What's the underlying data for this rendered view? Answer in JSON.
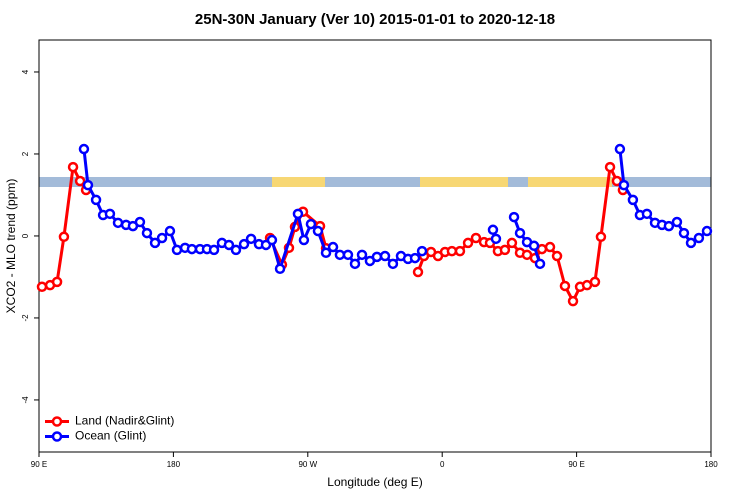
{
  "chart_data": {
    "type": "line",
    "title": "25N-30N January (Ver 10)   2015-01-01 to 2020-12-18",
    "x_label": "Longitude (deg E)",
    "y_label": "XCO2 - MLO trend (ppm)",
    "xlim": [
      90,
      540
    ],
    "ylim": [
      -5.27,
      4.78
    ],
    "xticks": [
      {
        "value": 90,
        "label": "90 E"
      },
      {
        "value": 180,
        "label": "180"
      },
      {
        "value": 270,
        "label": "90 W"
      },
      {
        "value": 360,
        "label": "0"
      },
      {
        "value": 450,
        "label": "90 E"
      },
      {
        "value": 540,
        "label": "180"
      }
    ],
    "yticks": [
      -4,
      -2,
      0,
      2,
      4
    ],
    "legend": "bottomleft",
    "series": [
      {
        "name": "Land (Nadir&Glint)",
        "color": "#ff0000",
        "x": [
          92.0,
          97.4,
          102.1,
          106.7,
          112.8,
          117.5,
          121.5,
          null,
          244.7,
          252.7,
          257.4,
          261.4,
          266.8,
          278.2,
          282.2,
          null,
          343.8,
          347.8,
          352.5,
          357.2,
          361.9,
          366.5,
          371.9,
          377.3,
          382.6,
          388.0,
          392.0,
          397.3,
          402.0,
          406.7,
          412.1,
          416.8,
          422.1,
          426.8,
          432.2,
          436.9,
          442.2,
          447.6,
          452.3,
          457.0,
          462.3,
          466.3,
          472.4,
          477.0,
          481.0
        ],
        "values": [
          -1.24,
          -1.2,
          -1.12,
          -0.02,
          1.68,
          1.34,
          1.12,
          null,
          -0.05,
          -0.7,
          -0.29,
          0.22,
          0.59,
          0.24,
          -0.3,
          null,
          -0.88,
          -0.49,
          -0.39,
          -0.49,
          -0.39,
          -0.37,
          -0.37,
          -0.17,
          -0.05,
          -0.15,
          -0.17,
          -0.37,
          -0.34,
          -0.17,
          -0.41,
          -0.46,
          -0.54,
          -0.32,
          -0.27,
          -0.49,
          -1.22,
          -1.59,
          -1.24,
          -1.2,
          -1.12,
          -0.02,
          1.68,
          1.34,
          1.12
        ]
      },
      {
        "name": "Ocean (Glint)",
        "color": "#0000ff",
        "x": [
          120.1,
          122.8,
          128.2,
          132.9,
          137.5,
          142.9,
          148.3,
          152.9,
          157.6,
          162.3,
          167.7,
          172.4,
          177.7,
          182.4,
          187.8,
          192.4,
          197.8,
          202.5,
          207.2,
          212.5,
          217.2,
          221.9,
          227.3,
          232.0,
          237.3,
          242.0,
          246.0,
          251.4,
          263.4,
          267.4,
          272.1,
          276.8,
          282.2,
          286.9,
          291.5,
          296.9,
          301.6,
          306.3,
          311.6,
          316.3,
          321.7,
          327.0,
          332.4,
          337.1,
          341.8,
          346.5,
          null,
          394.0,
          396.0,
          null,
          408.1,
          412.1,
          416.8,
          421.5,
          425.5,
          null,
          479.0,
          481.7,
          487.7,
          492.4,
          497.1,
          502.5,
          507.2,
          511.8,
          517.2,
          521.9,
          526.6,
          531.9,
          537.3
        ],
        "values": [
          2.12,
          1.24,
          0.88,
          0.51,
          0.54,
          0.32,
          0.27,
          0.24,
          0.34,
          0.07,
          -0.17,
          -0.05,
          0.12,
          -0.34,
          -0.29,
          -0.32,
          -0.32,
          -0.32,
          -0.34,
          -0.17,
          -0.22,
          -0.34,
          -0.2,
          -0.07,
          -0.2,
          -0.22,
          -0.1,
          -0.8,
          0.54,
          -0.1,
          0.29,
          0.12,
          -0.41,
          -0.27,
          -0.46,
          -0.46,
          -0.68,
          -0.46,
          -0.61,
          -0.51,
          -0.49,
          -0.68,
          -0.49,
          -0.56,
          -0.54,
          -0.37,
          null,
          0.15,
          -0.07,
          null,
          0.46,
          0.07,
          -0.15,
          -0.24,
          -0.68,
          null,
          2.12,
          1.24,
          0.88,
          0.51,
          0.54,
          0.32,
          0.27,
          0.24,
          0.34,
          0.07,
          -0.17,
          -0.05,
          0.12
        ]
      }
    ]
  }
}
